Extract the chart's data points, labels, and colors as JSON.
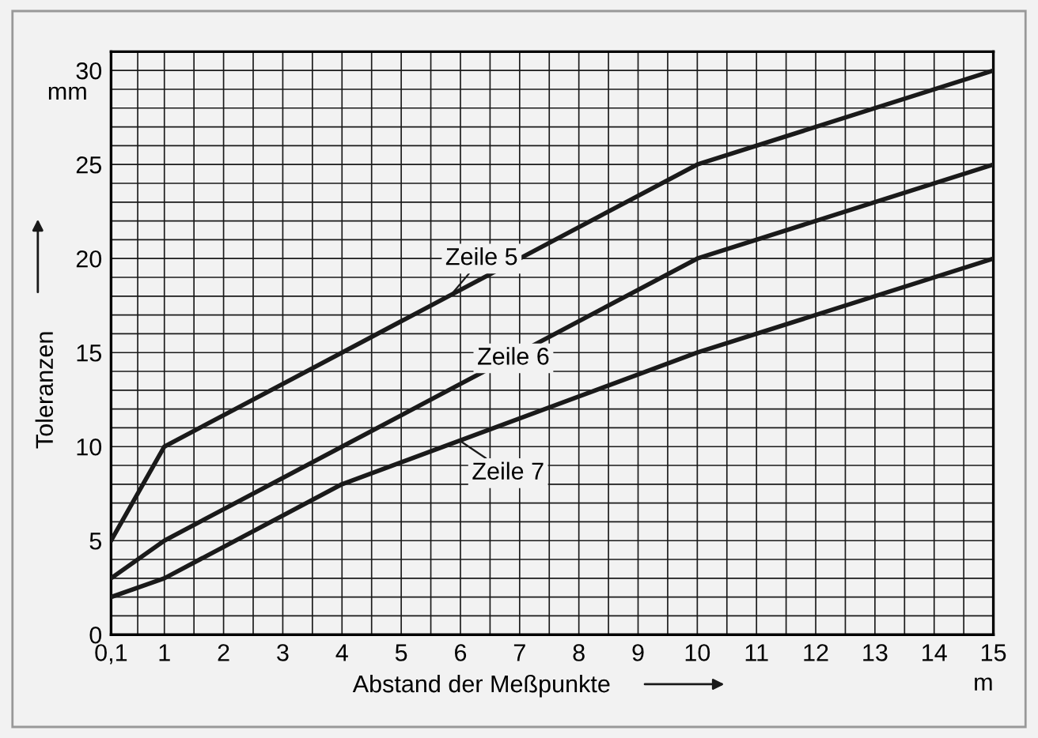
{
  "chart_data": {
    "type": "line",
    "xlabel": "Abstand der Meßpunkte",
    "ylabel": "Toleranzen",
    "series": [
      {
        "color": "#1a1a1a",
        "x": [
          0.1,
          1,
          4,
          10,
          15
        ],
        "values": [
          5,
          10,
          15,
          25,
          30
        ]
      },
      {
        "color": "#1a1a1a",
        "x": [
          0.1,
          1,
          4,
          10,
          15
        ],
        "values": [
          3,
          5,
          10,
          20,
          25
        ]
      },
      {
        "color": "#1a1a1a",
        "x": [
          0.1,
          1,
          4,
          10,
          15
        ],
        "values": [
          2,
          3,
          8,
          15,
          20
        ]
      }
    ],
    "annotations": [
      "Zeile 5",
      "Zeile 6",
      "Zeile 7",
      "mm",
      "m"
    ],
    "xlim": [
      0.1,
      15
    ],
    "ylim": [
      0,
      31
    ],
    "xticks": [
      {
        "value": 0.1,
        "label": "0,1"
      },
      {
        "value": 0.55,
        "label": null
      },
      1,
      {
        "value": 1.5,
        "label": null
      },
      2,
      {
        "value": 2.5,
        "label": null
      },
      3,
      {
        "value": 3.5,
        "label": null
      },
      4,
      {
        "value": 4.5,
        "label": null
      },
      5,
      {
        "value": 5.5,
        "label": null
      },
      6,
      {
        "value": 6.5,
        "label": null
      },
      7,
      {
        "value": 7.5,
        "label": null
      },
      8,
      {
        "value": 8.5,
        "label": null
      },
      9,
      {
        "value": 9.5,
        "label": null
      },
      10,
      {
        "value": 10.5,
        "label": null
      },
      11,
      {
        "value": 11.5,
        "label": null
      },
      12,
      {
        "value": 12.5,
        "label": null
      },
      13,
      {
        "value": 13.5,
        "label": null
      },
      14,
      {
        "value": 14.5,
        "label": null
      },
      15
    ],
    "yticks": [
      0,
      {
        "value": 1,
        "label": null
      },
      {
        "value": 2,
        "label": null
      },
      {
        "value": 3,
        "label": null
      },
      {
        "value": 4,
        "label": null
      },
      5,
      {
        "value": 6,
        "label": null
      },
      {
        "value": 7,
        "label": null
      },
      {
        "value": 8,
        "label": null
      },
      {
        "value": 9,
        "label": null
      },
      10,
      {
        "value": 11,
        "label": null
      },
      {
        "value": 12,
        "label": null
      },
      {
        "value": 13,
        "label": null
      },
      {
        "value": 14,
        "label": null
      },
      15,
      {
        "value": 16,
        "label": null
      },
      {
        "value": 17,
        "label": null
      },
      {
        "value": 18,
        "label": null
      },
      {
        "value": 19,
        "label": null
      },
      20,
      {
        "value": 21,
        "label": null
      },
      {
        "value": 22,
        "label": null
      },
      {
        "value": 23,
        "label": null
      },
      {
        "value": 24,
        "label": null
      },
      25,
      {
        "value": 26,
        "label": null
      },
      {
        "value": 27,
        "label": null
      },
      {
        "value": 28,
        "label": null
      },
      {
        "value": 29,
        "label": null
      },
      30,
      {
        "value": 31,
        "label": null
      }
    ],
    "grid": true,
    "line_style": "solid",
    "marker": "none"
  }
}
